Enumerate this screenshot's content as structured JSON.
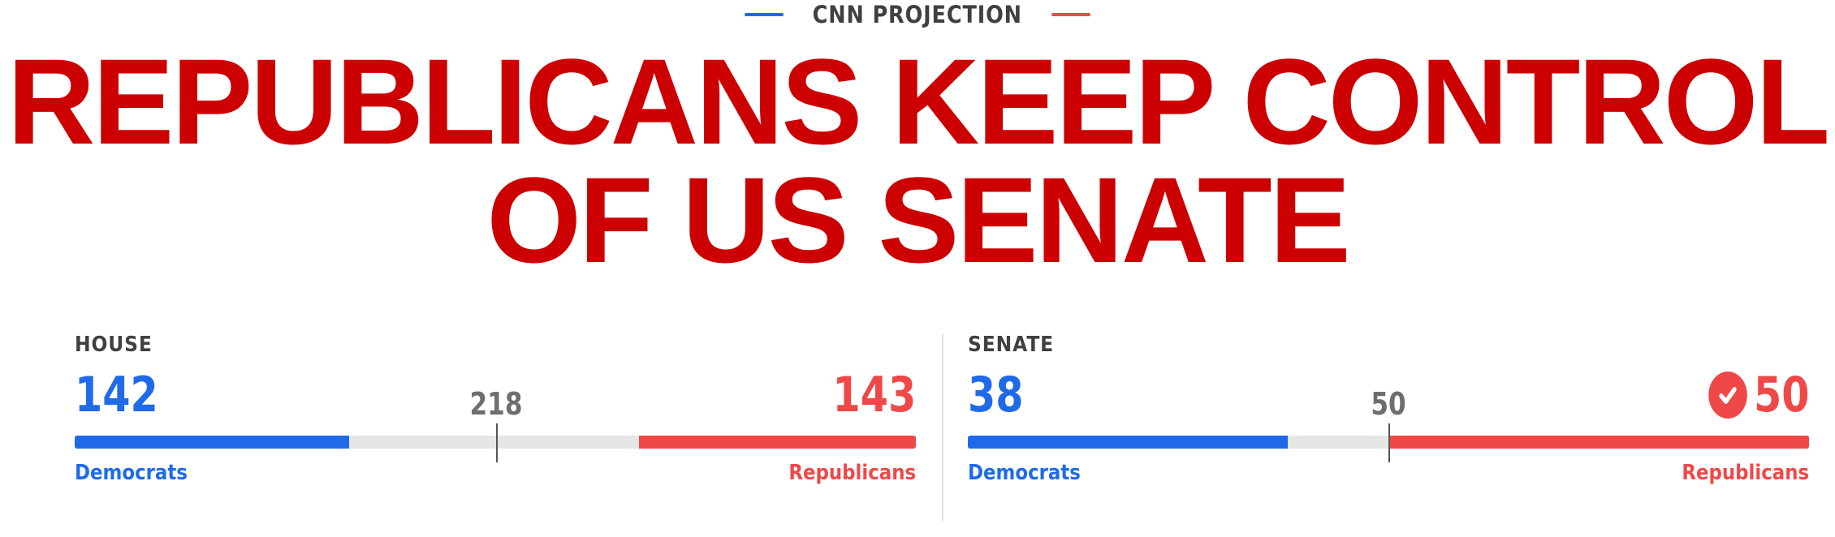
{
  "kicker": {
    "text": "CNN PROJECTION"
  },
  "headline": {
    "line1": "REPUBLICANS KEEP CONTROL",
    "line2": "OF US SENATE"
  },
  "colors": {
    "democrat": "#1f6ae8",
    "republican": "#f04848",
    "headline": "#cc0000"
  },
  "house": {
    "label": "HOUSE",
    "dem_count": "142",
    "rep_count": "143",
    "threshold": "218",
    "total_seats": 435,
    "dem_party_label": "Democrats",
    "rep_party_label": "Republicans",
    "winner_check": false
  },
  "senate": {
    "label": "SENATE",
    "dem_count": "38",
    "rep_count": "50",
    "threshold": "50",
    "total_seats": 100,
    "dem_party_label": "Democrats",
    "rep_party_label": "Republicans",
    "winner_check": true,
    "winner_icon": "checkmark-circle-icon"
  }
}
